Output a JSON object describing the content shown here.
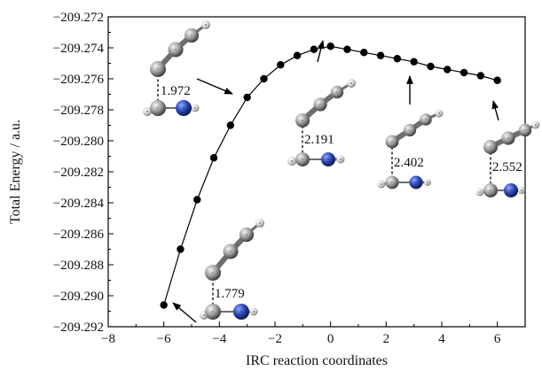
{
  "chart_data": {
    "type": "scatter",
    "xlabel": "IRC reaction coordinates",
    "ylabel": "Total Energy / a.u.",
    "xlim": [
      -8,
      7
    ],
    "ylim": [
      -209.292,
      -209.272
    ],
    "x_ticks": [
      "−8",
      "−6",
      "−4",
      "−2",
      "0",
      "2",
      "4",
      "6"
    ],
    "y_ticks": [
      "−209.272",
      "−209.274",
      "−209.276",
      "−209.278",
      "−209.280",
      "−209.282",
      "−209.284",
      "−209.286",
      "−209.288",
      "−209.290",
      "−209.292"
    ],
    "series": [
      {
        "marker": "filled-circle",
        "line": "solid",
        "color": "#000000",
        "x": [
          -6.0,
          -5.4,
          -4.8,
          -4.2,
          -3.6,
          -3.0,
          -2.4,
          -1.8,
          -1.2,
          -0.6,
          0.0,
          0.6,
          1.2,
          1.8,
          2.4,
          3.0,
          3.6,
          4.2,
          4.8,
          5.4,
          6.0
        ],
        "y": [
          -209.2906,
          -209.287,
          -209.2838,
          -209.2811,
          -209.279,
          -209.2772,
          -209.276,
          -209.2751,
          -209.2745,
          -209.2741,
          -209.2739,
          -209.2741,
          -209.2743,
          -209.2745,
          -209.2747,
          -209.2749,
          -209.2752,
          -209.2754,
          -209.2756,
          -209.2758,
          -209.2761
        ]
      }
    ],
    "annotations": [
      {
        "label": "1.779",
        "points_to_x": -6.0,
        "points_to_y": -209.2906
      },
      {
        "label": "1.972",
        "points_to_x": -3.0,
        "points_to_y": -209.2772
      },
      {
        "label": "2.191",
        "points_to_x": 0.0,
        "points_to_y": -209.2739
      },
      {
        "label": "2.402",
        "points_to_x": 3.0,
        "points_to_y": -209.2749
      },
      {
        "label": "2.552",
        "points_to_x": 6.0,
        "points_to_y": -209.2761
      }
    ],
    "atom_labels": {
      "carbon": "C",
      "nitrogen": "N",
      "hydrogen": "H"
    },
    "colors": {
      "carbon": "#9a9a9a",
      "nitrogen": "#1f3aa0",
      "hydrogen": "#d7d7d7",
      "line": "#000000"
    }
  }
}
